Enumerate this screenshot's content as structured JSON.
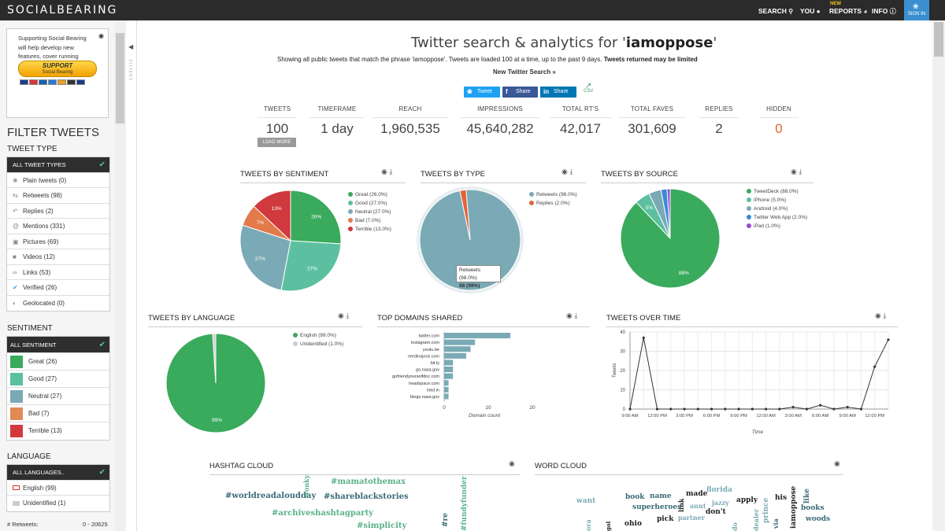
{
  "app": {
    "logo": "SOCIALBEARING"
  },
  "topnav": {
    "search": "SEARCH",
    "you": "YOU",
    "reports": "REPORTS",
    "new_badge": "NEW",
    "info": "INFO",
    "signin": "SIGN IN"
  },
  "support": {
    "text": "Supporting Social Bearing will help develop new features, cover running costs and keep this site free",
    "button_main": "SUPPORT",
    "button_sub": "Social Bearing"
  },
  "filters": {
    "title": "FILTER TWEETS",
    "tab_label": "FILTERS",
    "tweet_type": {
      "heading": "TWEET TYPE",
      "all_label": "ALL TWEET TYPES",
      "items": [
        {
          "label": "Plain tweets (0)",
          "icon": "twitter-icon"
        },
        {
          "label": "Retweets (98)",
          "icon": "retweet-icon"
        },
        {
          "label": "Replies (2)",
          "icon": "reply-icon"
        },
        {
          "label": "Mentions (331)",
          "icon": "at-icon"
        },
        {
          "label": "Pictures (69)",
          "icon": "picture-icon"
        },
        {
          "label": "Videos (12)",
          "icon": "video-icon"
        },
        {
          "label": "Links (53)",
          "icon": "link-icon"
        },
        {
          "label": "Verified (26)",
          "icon": "verified-icon"
        },
        {
          "label": "Geolocated (0)",
          "icon": "globe-icon"
        }
      ]
    },
    "sentiment": {
      "heading": "SENTIMENT",
      "all_label": "ALL SENTIMENT",
      "items": [
        {
          "label": "Great (26)",
          "color": "#3aaa5c"
        },
        {
          "label": "Good (27)",
          "color": "#5cc0a0"
        },
        {
          "label": "Neutral (27)",
          "color": "#7aaab5"
        },
        {
          "label": "Bad (7)",
          "color": "#e27a4a"
        },
        {
          "label": "Terrible (13)",
          "color": "#d0393d"
        }
      ]
    },
    "language": {
      "heading": "LANGUAGE",
      "all_label": "ALL LANGUAGES..",
      "items": [
        {
          "label": "English (99)"
        },
        {
          "label": "Unidentified (1)"
        }
      ]
    },
    "retweets_label": "# Retweets:",
    "retweets_range": "0 - 20625"
  },
  "header": {
    "title_prefix": "Twitter search & analytics for '",
    "query": "iamoppose",
    "title_suffix": "'",
    "desc_prefix": "Showing all public tweets that match the phrase 'iamoppose'. Tweets are loaded 100 at a time, up to the past 9 days.",
    "desc_bold": "Tweets returned may be limited",
    "new_search": "New Twitter Search »"
  },
  "share": {
    "tweet": "Tweet",
    "facebook": "Share",
    "linkedin": "Share",
    "csv": "CSV"
  },
  "stats": [
    {
      "label": "TWEETS",
      "value": "100"
    },
    {
      "label": "TIMEFRAME",
      "value": "1 day"
    },
    {
      "label": "REACH",
      "value": "1,960,535"
    },
    {
      "label": "IMPRESSIONS",
      "value": "45,640,282"
    },
    {
      "label": "TOTAL RT'S",
      "value": "42,017"
    },
    {
      "label": "TOTAL FAVES",
      "value": "301,609"
    },
    {
      "label": "REPLIES",
      "value": "2"
    },
    {
      "label": "HIDDEN",
      "value": "0"
    }
  ],
  "load_more": "LOAD MORE",
  "panels": {
    "sentiment": "TWEETS BY SENTIMENT",
    "type": "TWEETS BY TYPE",
    "source": "TWEETS BY SOURCE",
    "language": "TWEETS BY LANGUAGE",
    "domains": "TOP DOMAINS SHARED",
    "overtime": "TWEETS OVER TIME",
    "hashtag": "HASHTAG CLOUD",
    "word": "WORD CLOUD"
  },
  "tooltip": {
    "line1": "Retweets (98.0%)",
    "line2": "98 (98%)"
  },
  "chart_data": [
    {
      "type": "pie",
      "title": "TWEETS BY SENTIMENT",
      "slices": [
        {
          "label": "Great (26.0%)",
          "value": 26,
          "color": "#3aaa5c",
          "text": "26%"
        },
        {
          "label": "Good (27.0%)",
          "value": 27,
          "color": "#5cc0a0",
          "text": "27%"
        },
        {
          "label": "Neutral (27.0%)",
          "value": 27,
          "color": "#7aaab5",
          "text": "27%"
        },
        {
          "label": "Bad (7.0%)",
          "value": 7,
          "color": "#e27a4a",
          "text": "7%"
        },
        {
          "label": "Terrible (13.0%)",
          "value": 13,
          "color": "#d0393d",
          "text": "13%"
        }
      ]
    },
    {
      "type": "pie",
      "title": "TWEETS BY TYPE",
      "slices": [
        {
          "label": "Retweets (98.0%)",
          "value": 98,
          "color": "#7aaab5",
          "text": ""
        },
        {
          "label": "Replies (2.0%)",
          "value": 2,
          "color": "#e2643a",
          "text": ""
        }
      ]
    },
    {
      "type": "pie",
      "title": "TWEETS BY SOURCE",
      "slices": [
        {
          "label": "TweetDeck (88.0%)",
          "value": 88,
          "color": "#3aaa5c",
          "text": "88%"
        },
        {
          "label": "iPhone (5.0%)",
          "value": 5,
          "color": "#5cc0a0",
          "text": "5%"
        },
        {
          "label": "Android (4.0%)",
          "value": 4,
          "color": "#7aaab5",
          "text": ""
        },
        {
          "label": "Twitter Web App (2.0%)",
          "value": 2,
          "color": "#3a88d8",
          "text": ""
        },
        {
          "label": "iPad (1.0%)",
          "value": 1,
          "color": "#9a4ad8",
          "text": ""
        }
      ]
    },
    {
      "type": "pie",
      "title": "TWEETS BY LANGUAGE",
      "slices": [
        {
          "label": "English (99.0%)",
          "value": 99,
          "color": "#3aaa5c",
          "text": "99%"
        },
        {
          "label": "Unidentified (1.0%)",
          "value": 1,
          "color": "#cccccc",
          "text": ""
        }
      ]
    },
    {
      "type": "bar",
      "title": "TOP DOMAINS SHARED",
      "orientation": "horizontal",
      "categories": [
        "twitter.com",
        "instagram.com",
        "youtu.be",
        "nerdinajock.com",
        "bit.ly",
        "go.nasa.gov",
        "gofriendyourselfdoc.com",
        "headspace.com",
        "lnkd.in",
        "blogs.nasa.gov"
      ],
      "values": [
        15,
        7,
        6,
        5,
        2,
        2,
        2,
        1,
        1,
        1
      ],
      "xlabel": "Domain count",
      "xticks": [
        0,
        10,
        20
      ],
      "xlim": [
        0,
        20
      ]
    },
    {
      "type": "line",
      "title": "TWEETS OVER TIME",
      "x": [
        "9:00 AM",
        "",
        "12:00 PM",
        "",
        "3:00 PM",
        "",
        "6:00 PM",
        "",
        "9:00 PM",
        "",
        "12:00 AM",
        "",
        "3:00 AM",
        "",
        "6:00 AM",
        "",
        "9:00 AM",
        "",
        "12:00 PM",
        ""
      ],
      "values": [
        0,
        37,
        0,
        0,
        0,
        0,
        0,
        0,
        0,
        0,
        0,
        0,
        1,
        0,
        2,
        0,
        1,
        0,
        22,
        36
      ],
      "xticks": [
        "9:00 AM",
        "12:00 PM",
        "3:00 PM",
        "6:00 PM",
        "9:00 PM",
        "12:00 AM",
        "3:00 AM",
        "6:00 AM",
        "9:00 AM",
        "12:00 PM"
      ],
      "yticks": [
        0,
        10,
        20,
        30,
        40
      ],
      "ylim": [
        0,
        40
      ],
      "xlabel": "Time",
      "ylabel": "Tweets"
    }
  ],
  "hashtag_cloud": [
    "#mamatothemax",
    "#worldreadaloudday",
    "#shareblackstories",
    "#archiveshashtagparty",
    "#simplicity",
    "wonky",
    "#fundyfunder",
    "#re"
  ],
  "word_cloud": [
    "florida",
    "made",
    "book",
    "name",
    "jazzy",
    "apply",
    "his",
    "like",
    "want",
    "aunt",
    "superheroes",
    "link",
    "don't",
    "books",
    "pick",
    "partner",
    "ohio",
    "woods",
    "prince",
    "dealer",
    "iamoppose",
    "via",
    "ora",
    "gol",
    "do"
  ]
}
